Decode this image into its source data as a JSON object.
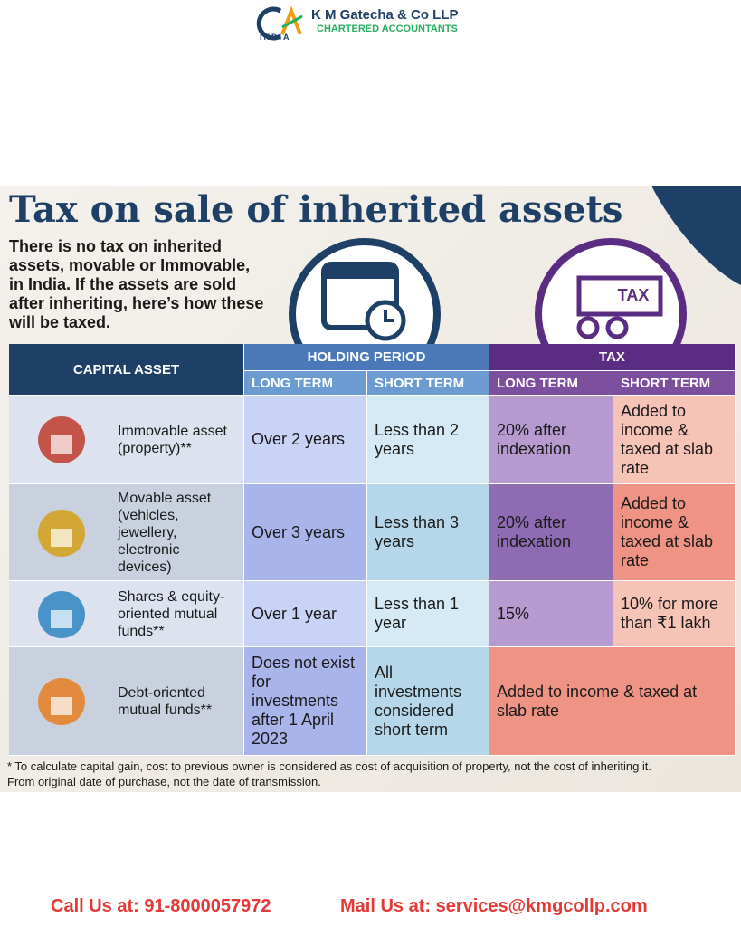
{
  "header": {
    "logo_mark": "CA",
    "logo_country": "INDIA",
    "firm_name": "K M Gatecha & Co LLP",
    "firm_tagline": "CHARTERED ACCOUNTANTS"
  },
  "infographic": {
    "title": "Tax on sale of inherited assets",
    "intro": "There is no tax on inherited assets, movable or Immovable, in India. If the assets are sold after inheriting, here’s how these will be taxed.",
    "tax_icon_label": "TAX",
    "table": {
      "headers": {
        "capital_asset": "CAPITAL ASSET",
        "holding_period": "HOLDING PERIOD",
        "tax": "TAX",
        "sub": [
          "LONG TERM",
          "SHORT TERM",
          "LONG TERM",
          "SHORT TERM"
        ]
      },
      "rows": [
        {
          "cells": [
            "Immovable asset (property)**",
            "Over 2 years",
            "Less than 2 years",
            "20% after indexation",
            "Added to income & taxed at slab rate"
          ]
        },
        {
          "cells": [
            "Movable asset (vehicles, jewellery, electronic devices)",
            "Over 3 years",
            "Less than 3 years",
            "20% after indexation",
            "Added to income & taxed at slab rate"
          ]
        },
        {
          "cells": [
            "Shares & equity-oriented mutual funds**",
            "Over 1 year",
            "Less than 1 year",
            "15%",
            "10% for more than ₹1 lakh"
          ]
        },
        {
          "cells": [
            "Debt-oriented mutual funds**",
            "Does not exist for investments after 1 April 2023",
            "All investments considered short term",
            "Added to income & taxed at slab rate"
          ]
        }
      ]
    },
    "footnote": [
      "* To calculate capital gain, cost to previous owner is considered as cost of acquisition of property, not the cost of inheriting it.",
      "From original date of purchase, not the date of transmission."
    ]
  },
  "footer": {
    "call": "Call Us at: 91-8000057972",
    "mail": "Mail Us at: services@kmgcollp.com"
  }
}
